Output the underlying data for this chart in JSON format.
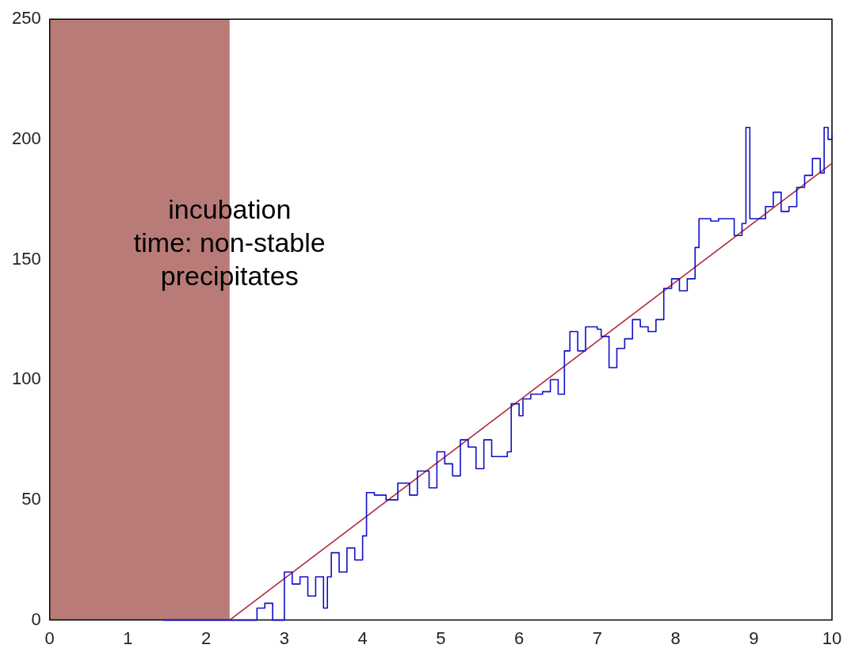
{
  "chart_data": {
    "type": "step",
    "series": [
      {
        "color": "#1010c8",
        "x": [
          1.45,
          2.6,
          2.65,
          2.75,
          2.85,
          2.97,
          3.0,
          3.1,
          3.2,
          3.3,
          3.4,
          3.5,
          3.55,
          3.6,
          3.7,
          3.8,
          3.9,
          4.0,
          4.05,
          4.15,
          4.3,
          4.45,
          4.6,
          4.7,
          4.85,
          4.95,
          5.05,
          5.15,
          5.25,
          5.35,
          5.45,
          5.55,
          5.65,
          5.85,
          5.9,
          6.0,
          6.05,
          6.15,
          6.3,
          6.4,
          6.5,
          6.58,
          6.65,
          6.75,
          6.85,
          7.0,
          7.05,
          7.15,
          7.25,
          7.35,
          7.45,
          7.55,
          7.65,
          7.75,
          7.85,
          7.95,
          8.05,
          8.15,
          8.25,
          8.3,
          8.45,
          8.55,
          8.7,
          8.75,
          8.85,
          8.9,
          8.95,
          9.1,
          9.15,
          9.25,
          9.35,
          9.45,
          9.55,
          9.65,
          9.75,
          9.85,
          9.9,
          9.95,
          10.0
        ],
        "values": [
          0,
          0,
          5,
          7,
          0,
          0,
          20,
          15,
          18,
          10,
          18,
          5,
          18,
          28,
          20,
          30,
          25,
          35,
          53,
          52,
          50,
          57,
          52,
          62,
          55,
          70,
          65,
          60,
          75,
          72,
          63,
          75,
          68,
          70,
          90,
          85,
          92,
          94,
          95,
          100,
          94,
          112,
          120,
          112,
          122,
          121,
          118,
          105,
          113,
          117,
          125,
          122,
          120,
          125,
          138,
          142,
          137,
          142,
          155,
          167,
          166,
          167,
          167,
          160,
          165,
          205,
          167,
          167,
          172,
          178,
          170,
          172,
          180,
          185,
          192,
          186,
          205,
          200,
          202
        ]
      },
      {
        "type": "line",
        "color": "#b02a3a",
        "x": [
          2.3,
          10
        ],
        "values": [
          0,
          190
        ]
      }
    ],
    "bands": [
      {
        "axis": "x",
        "from": 0,
        "to": 2.3,
        "label": "incubation\ntime: non-stable\nprecipitates",
        "color": "#b97b78"
      }
    ],
    "xlim": [
      0,
      10
    ],
    "xticks": [
      0,
      1,
      2,
      3,
      4,
      5,
      6,
      7,
      8,
      9,
      10
    ],
    "ylim": [
      0,
      250
    ],
    "yticks": [
      0,
      50,
      100,
      150,
      200,
      250
    ],
    "grid": false,
    "legend": false
  }
}
